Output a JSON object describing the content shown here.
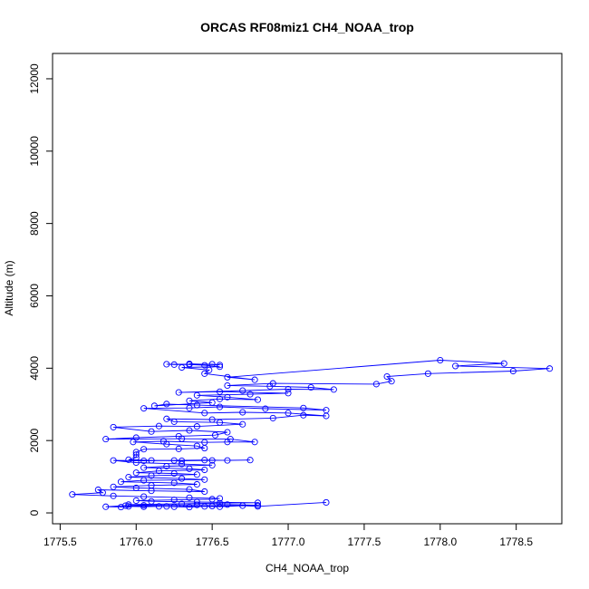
{
  "chart_data": {
    "type": "line",
    "title": "ORCAS RF08miz1 CH4_NOAA_trop",
    "xlabel": "CH4_NOAA_trop",
    "ylabel": "Altitude (m)",
    "xlim": [
      1775.45,
      1778.8
    ],
    "ylim": [
      -300,
      12700
    ],
    "xticks": [
      1775.5,
      1776.0,
      1776.5,
      1777.0,
      1777.5,
      1778.0,
      1778.5
    ],
    "xtick_labels": [
      "1775.5",
      "1776.0",
      "1776.5",
      "1777.0",
      "1777.5",
      "1778.0",
      "1778.5"
    ],
    "yticks": [
      0,
      2000,
      4000,
      6000,
      8000,
      10000,
      12000
    ],
    "ytick_labels": [
      "0",
      "2000",
      "4000",
      "6000",
      "8000",
      "10000",
      "12000"
    ],
    "series": [
      {
        "marker": "open-circle",
        "color": "#0000ff",
        "points": [
          [
            1777.25,
            290
          ],
          [
            1776.8,
            180
          ],
          [
            1776.7,
            200
          ],
          [
            1776.55,
            170
          ],
          [
            1776.45,
            180
          ],
          [
            1776.35,
            160
          ],
          [
            1776.25,
            170
          ],
          [
            1776.15,
            180
          ],
          [
            1776.05,
            170
          ],
          [
            1775.95,
            180
          ],
          [
            1775.9,
            160
          ],
          [
            1775.8,
            170
          ],
          [
            1775.93,
            200
          ],
          [
            1776.2,
            180
          ],
          [
            1776.5,
            190
          ],
          [
            1776.8,
            210
          ],
          [
            1776.6,
            230
          ],
          [
            1776.4,
            220
          ],
          [
            1776.05,
            210
          ],
          [
            1775.95,
            230
          ],
          [
            1776.3,
            250
          ],
          [
            1776.55,
            270
          ],
          [
            1776.8,
            280
          ],
          [
            1776.4,
            300
          ],
          [
            1776.1,
            320
          ],
          [
            1776.0,
            340
          ],
          [
            1776.25,
            360
          ],
          [
            1776.5,
            380
          ],
          [
            1776.55,
            400
          ],
          [
            1776.35,
            420
          ],
          [
            1776.05,
            450
          ],
          [
            1775.85,
            470
          ],
          [
            1775.58,
            510
          ],
          [
            1775.78,
            560
          ],
          [
            1775.75,
            640
          ],
          [
            1776.1,
            610
          ],
          [
            1776.45,
            590
          ],
          [
            1776.35,
            650
          ],
          [
            1776.0,
            690
          ],
          [
            1775.85,
            720
          ],
          [
            1776.1,
            760
          ],
          [
            1776.4,
            790
          ],
          [
            1776.25,
            830
          ],
          [
            1775.9,
            860
          ],
          [
            1776.05,
            900
          ],
          [
            1776.45,
            920
          ],
          [
            1776.3,
            950
          ],
          [
            1775.95,
            990
          ],
          [
            1776.1,
            1030
          ],
          [
            1776.4,
            1060
          ],
          [
            1776.25,
            1090
          ],
          [
            1776.0,
            1110
          ],
          [
            1776.15,
            1160
          ],
          [
            1776.45,
            1190
          ],
          [
            1776.35,
            1220
          ],
          [
            1776.05,
            1250
          ],
          [
            1776.2,
            1290
          ],
          [
            1776.5,
            1320
          ],
          [
            1776.3,
            1350
          ],
          [
            1776.0,
            1390
          ],
          [
            1775.85,
            1450
          ],
          [
            1776.05,
            1440
          ],
          [
            1776.25,
            1450
          ],
          [
            1776.45,
            1460
          ],
          [
            1776.6,
            1450
          ],
          [
            1776.75,
            1460
          ],
          [
            1776.5,
            1450
          ],
          [
            1776.3,
            1440
          ],
          [
            1776.1,
            1450
          ],
          [
            1775.95,
            1470
          ],
          [
            1776.0,
            1530
          ],
          [
            1776.0,
            1610
          ],
          [
            1776.0,
            1680
          ],
          [
            1776.05,
            1760
          ],
          [
            1776.28,
            1770
          ],
          [
            1776.45,
            1790
          ],
          [
            1776.4,
            1850
          ],
          [
            1776.2,
            1900
          ],
          [
            1775.98,
            1960
          ],
          [
            1776.18,
            1980
          ],
          [
            1776.45,
            1950
          ],
          [
            1776.6,
            1960
          ],
          [
            1776.78,
            1960
          ],
          [
            1776.62,
            2040
          ],
          [
            1776.3,
            2050
          ],
          [
            1775.8,
            2040
          ],
          [
            1776.0,
            2080
          ],
          [
            1776.28,
            2120
          ],
          [
            1776.52,
            2150
          ],
          [
            1776.6,
            2230
          ],
          [
            1776.35,
            2280
          ],
          [
            1776.1,
            2250
          ],
          [
            1775.85,
            2370
          ],
          [
            1776.15,
            2400
          ],
          [
            1776.4,
            2390
          ],
          [
            1776.7,
            2450
          ],
          [
            1776.55,
            2500
          ],
          [
            1776.25,
            2520
          ],
          [
            1776.2,
            2600
          ],
          [
            1776.5,
            2580
          ],
          [
            1776.9,
            2620
          ],
          [
            1777.1,
            2700
          ],
          [
            1777.25,
            2680
          ],
          [
            1777.0,
            2760
          ],
          [
            1776.7,
            2780
          ],
          [
            1776.45,
            2760
          ],
          [
            1776.05,
            2890
          ],
          [
            1776.35,
            2900
          ],
          [
            1776.55,
            2930
          ],
          [
            1776.85,
            2880
          ],
          [
            1777.25,
            2840
          ],
          [
            1777.1,
            2900
          ],
          [
            1776.4,
            2980
          ],
          [
            1776.2,
            3010
          ],
          [
            1776.12,
            2960
          ],
          [
            1776.5,
            3050
          ],
          [
            1776.35,
            3100
          ],
          [
            1776.55,
            3150
          ],
          [
            1776.8,
            3130
          ],
          [
            1776.6,
            3200
          ],
          [
            1776.4,
            3250
          ],
          [
            1776.75,
            3280
          ],
          [
            1777.0,
            3310
          ],
          [
            1776.55,
            3350
          ],
          [
            1776.28,
            3330
          ],
          [
            1776.7,
            3380
          ],
          [
            1777.0,
            3420
          ],
          [
            1777.3,
            3410
          ],
          [
            1777.15,
            3470
          ],
          [
            1776.88,
            3500
          ],
          [
            1776.6,
            3520
          ],
          [
            1776.9,
            3580
          ],
          [
            1777.58,
            3560
          ],
          [
            1777.68,
            3640
          ],
          [
            1777.65,
            3770
          ],
          [
            1777.92,
            3850
          ],
          [
            1778.48,
            3920
          ],
          [
            1778.72,
            3990
          ],
          [
            1778.1,
            4060
          ],
          [
            1778.42,
            4130
          ],
          [
            1778.0,
            4220
          ],
          [
            1776.6,
            3750
          ],
          [
            1776.78,
            3680
          ],
          [
            1776.45,
            3850
          ],
          [
            1776.48,
            3950
          ],
          [
            1776.3,
            4020
          ],
          [
            1776.55,
            4040
          ],
          [
            1776.45,
            4080
          ],
          [
            1776.35,
            4100
          ],
          [
            1776.25,
            4100
          ],
          [
            1776.2,
            4110
          ],
          [
            1776.5,
            4110
          ],
          [
            1776.55,
            4090
          ],
          [
            1776.35,
            4120
          ]
        ]
      }
    ]
  }
}
